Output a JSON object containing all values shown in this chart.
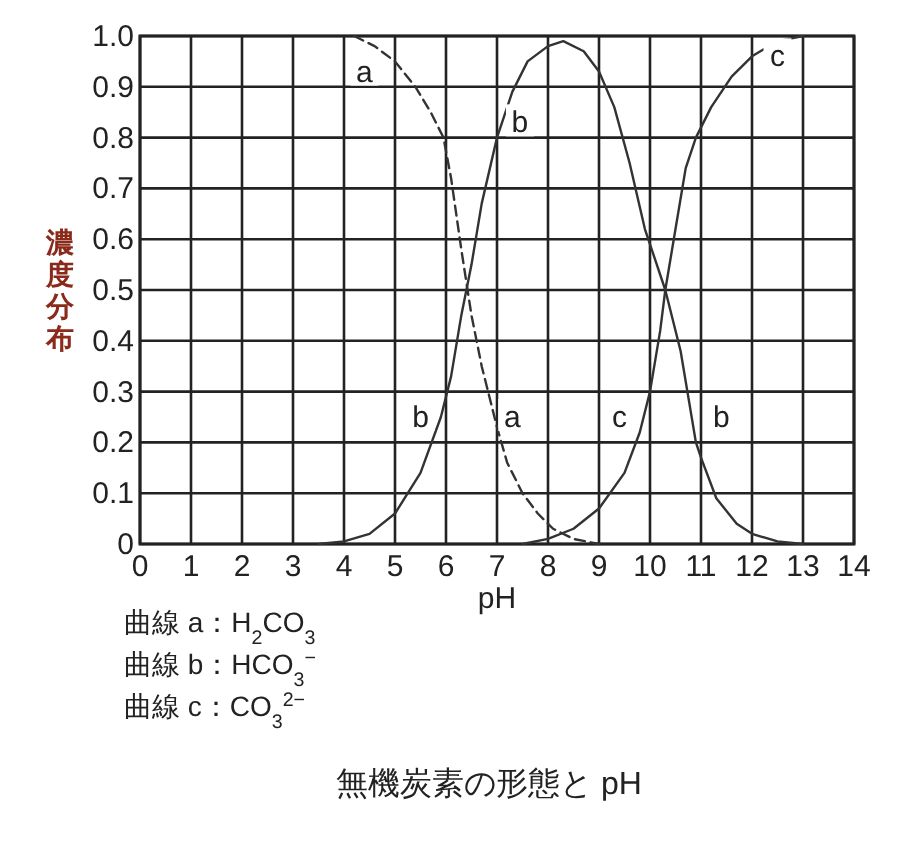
{
  "chart_data": {
    "type": "line",
    "xlabel": "pH",
    "ylabel": "濃度分布",
    "title": "無機炭素の形態と pH",
    "xlim": [
      0,
      14
    ],
    "ylim": [
      0,
      1
    ],
    "xticks": [
      0,
      1,
      2,
      3,
      4,
      5,
      6,
      7,
      8,
      9,
      10,
      11,
      12,
      13,
      14
    ],
    "yticks": [
      0,
      0.1,
      0.2,
      0.3,
      0.4,
      0.5,
      0.6,
      0.7,
      0.8,
      0.9,
      {
        "value": 1,
        "label": "1.0"
      }
    ],
    "grid": true,
    "marker": "none",
    "series": [
      {
        "color": "#333333",
        "line_style": "dashed",
        "x": [
          4.2,
          4.6,
          5,
          5.4,
          5.7,
          5.95,
          6.1,
          6.3,
          6.5,
          6.7,
          6.9,
          7.0,
          7.2,
          7.5,
          7.8,
          8.1,
          8.5,
          9
        ],
        "values": [
          1.0,
          0.98,
          0.95,
          0.9,
          0.85,
          0.8,
          0.72,
          0.58,
          0.45,
          0.35,
          0.27,
          0.23,
          0.16,
          0.1,
          0.06,
          0.03,
          0.01,
          0
        ]
      },
      {
        "color": "#333333",
        "line_style": "solid",
        "x": [
          3.5,
          4,
          4.5,
          5,
          5.5,
          5.9,
          6.1,
          6.3,
          6.5,
          6.7,
          7,
          7.3,
          7.6,
          8,
          8.3,
          8.7,
          9,
          9.3,
          9.6,
          9.9,
          10.3,
          10.6,
          10.9,
          11,
          11.3,
          11.7,
          12,
          12.5,
          13
        ],
        "values": [
          0,
          0.005,
          0.02,
          0.06,
          0.14,
          0.25,
          0.33,
          0.45,
          0.55,
          0.67,
          0.8,
          0.89,
          0.95,
          0.98,
          0.99,
          0.97,
          0.93,
          0.86,
          0.75,
          0.62,
          0.5,
          0.38,
          0.2,
          0.17,
          0.09,
          0.04,
          0.02,
          0.005,
          0
        ]
      },
      {
        "color": "#333333",
        "line_style": "solid",
        "x": [
          7.5,
          8,
          8.5,
          9,
          9.5,
          9.8,
          10,
          10.2,
          10.3,
          10.5,
          10.7,
          10.9,
          11.2,
          11.6,
          12,
          12.5,
          13
        ],
        "values": [
          0,
          0.01,
          0.03,
          0.07,
          0.14,
          0.22,
          0.3,
          0.42,
          0.5,
          0.62,
          0.74,
          0.8,
          0.86,
          0.92,
          0.96,
          0.99,
          1.0
        ]
      }
    ],
    "annotations": [
      {
        "text": "a",
        "x": 4.4,
        "y": 0.93
      },
      {
        "text": "b",
        "x": 7.45,
        "y": 0.83
      },
      {
        "text": "c",
        "x": 12.5,
        "y": 0.96
      },
      {
        "text": "b",
        "x": 5.5,
        "y": 0.25
      },
      {
        "text": "a",
        "x": 7.3,
        "y": 0.25
      },
      {
        "text": "c",
        "x": 9.4,
        "y": 0.25
      },
      {
        "text": "b",
        "x": 11.4,
        "y": 0.25
      },
      "曲線 a：H$_{2}$CO$_{3}$",
      "曲線 b：HCO$_{3}$$^{−}$",
      "曲線 c：CO$_{3}$$^{2−}$"
    ]
  }
}
